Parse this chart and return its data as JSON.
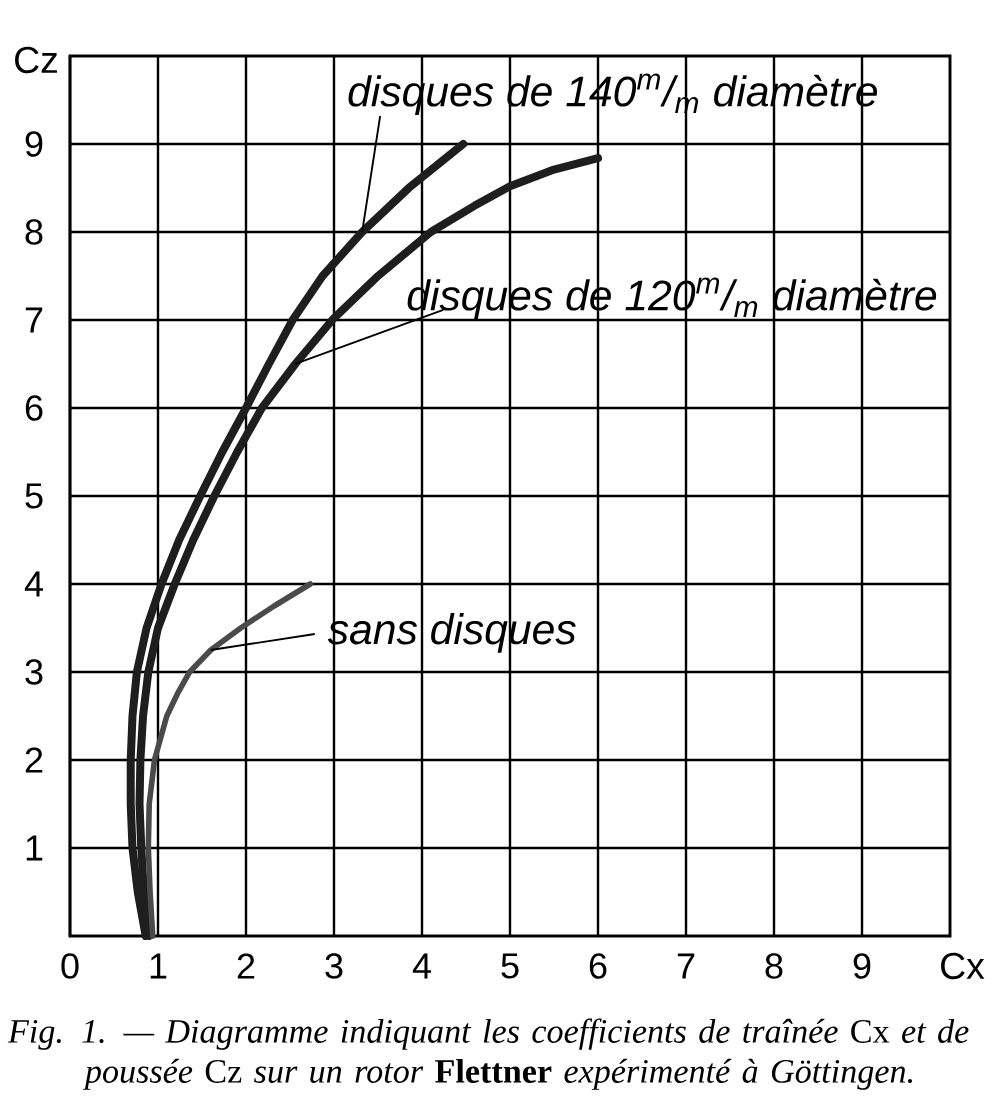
{
  "chart_data": {
    "type": "line",
    "xlabel": "Cx",
    "ylabel": "Cz",
    "annotations": [
      "*Fig. 1. — Diagramme indiquant les coefficients de traînée* Cx *et de poussée* Cz *sur un rotor* **Flettner** *expérimenté à Göttingen.*"
    ],
    "xlim": [
      0,
      10
    ],
    "ylim": [
      0,
      10
    ],
    "xticks": [
      0,
      1,
      2,
      3,
      4,
      5,
      6,
      7,
      8,
      9
    ],
    "yticks": [
      1,
      2,
      3,
      4,
      5,
      6,
      7,
      8,
      9
    ],
    "grid": true,
    "series": [
      {
        "name": "disques de 140$^{m}$/$_{m}$ diamètre",
        "color": "#1e1e1e",
        "x": [
          0.86,
          0.77,
          0.71,
          0.69,
          0.69,
          0.71,
          0.76,
          0.87,
          1.04,
          1.24,
          1.48,
          1.73,
          2.0,
          2.26,
          2.53,
          2.87,
          3.32,
          3.85,
          4.47
        ],
        "values": [
          0,
          0.5,
          1,
          1.5,
          2,
          2.5,
          3,
          3.5,
          4,
          4.5,
          5,
          5.5,
          6,
          6.5,
          7,
          7.5,
          8,
          8.5,
          9
        ]
      },
      {
        "name": "disques de 120$^{m}$/$_{m}$ diamètre",
        "color": "#1e1e1e",
        "x": [
          0.9,
          0.84,
          0.81,
          0.79,
          0.8,
          0.83,
          0.89,
          1.0,
          1.19,
          1.4,
          1.64,
          1.9,
          2.18,
          2.56,
          2.98,
          3.5,
          4.1,
          4.6,
          5.0,
          5.5,
          6.0
        ],
        "values": [
          0,
          0.5,
          1,
          1.5,
          2,
          2.5,
          3,
          3.5,
          4,
          4.5,
          5,
          5.5,
          6,
          6.5,
          7,
          7.5,
          8,
          8.3,
          8.52,
          8.71,
          8.84
        ]
      },
      {
        "name": "sans disques",
        "color": "#4a4a4a",
        "x": [
          0.94,
          0.91,
          0.89,
          0.9,
          0.96,
          1.1,
          1.22,
          1.36,
          1.6,
          1.94,
          2.32,
          2.73
        ],
        "values": [
          0,
          0.5,
          1,
          1.5,
          2,
          2.5,
          2.75,
          3,
          3.25,
          3.5,
          3.75,
          4
        ]
      }
    ]
  }
}
